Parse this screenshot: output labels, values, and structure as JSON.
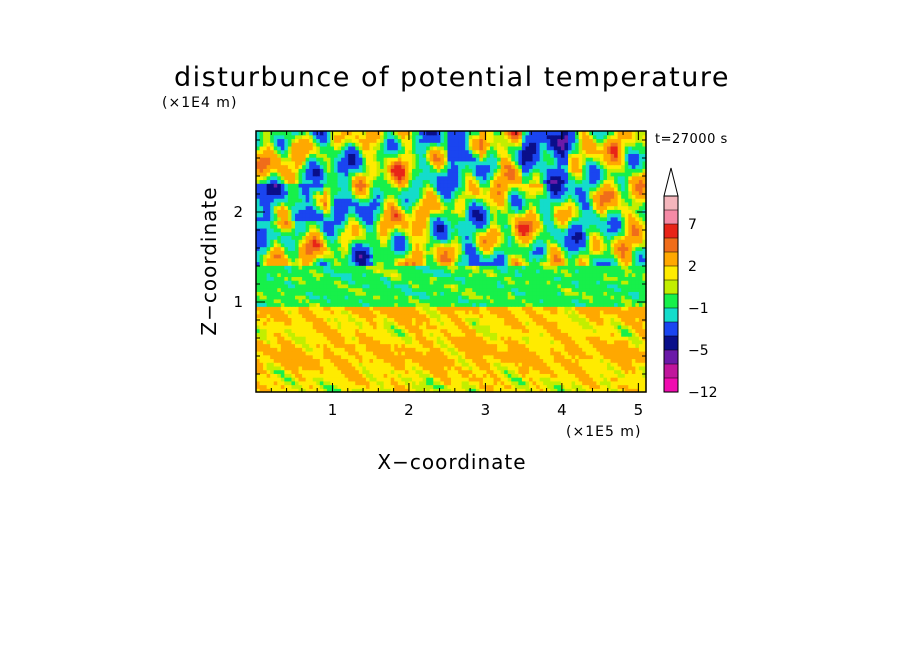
{
  "chart_data": {
    "type": "heatmap",
    "title": "disturbunce of potential temperature",
    "xlabel": "X−coordinate",
    "ylabel": "Z−coordinate",
    "x_unit": "(×1E5 m)",
    "y_unit": "(×1E4 m)",
    "time_label": "t=27000 s",
    "xlim": [
      0,
      5.1
    ],
    "ylim": [
      0,
      2.9
    ],
    "x_ticks": [
      1,
      2,
      3,
      4,
      5
    ],
    "x_tick_labels": [
      "1",
      "2",
      "3",
      "4",
      "5"
    ],
    "y_ticks": [
      1,
      2
    ],
    "y_tick_labels": [
      "1",
      "2"
    ],
    "colorbar": {
      "labels": [
        "7",
        "2",
        "−1",
        "−5",
        "−12"
      ],
      "label_values": [
        7,
        2,
        -1,
        -5,
        -12
      ],
      "bins": [
        {
          "color": "#f4b6bc"
        },
        {
          "color": "#f58aa6"
        },
        {
          "color": "#e82418"
        },
        {
          "color": "#f06d1a"
        },
        {
          "color": "#ffa800"
        },
        {
          "color": "#ffeb00"
        },
        {
          "color": "#c2ee00"
        },
        {
          "color": "#17f04a"
        },
        {
          "color": "#14dccb"
        },
        {
          "color": "#1a45f0"
        },
        {
          "color": "#0a0f8a"
        },
        {
          "color": "#6b1aa8"
        },
        {
          "color": "#c0169c"
        },
        {
          "color": "#f00cb0"
        }
      ],
      "extend": "max"
    },
    "layers": [
      {
        "z_range": [
          0,
          0.95
        ],
        "dominant": "orange/yellow",
        "value_range": [
          1,
          3
        ]
      },
      {
        "z_range": [
          0.95,
          1.4
        ],
        "dominant": "green",
        "value_range": [
          -1,
          0
        ]
      },
      {
        "z_range": [
          1.4,
          2.9
        ],
        "dominant": "wave pattern (orange, cyan, blue)",
        "value_range": [
          -5,
          4
        ]
      }
    ]
  }
}
